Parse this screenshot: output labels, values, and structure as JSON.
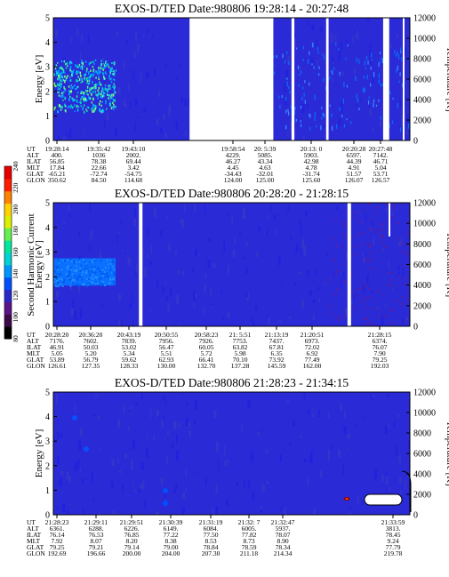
{
  "colorbar": {
    "label": "Second Harmonic Current",
    "ticks": [
      "80",
      "100",
      "120",
      "140",
      "160",
      "180",
      "200",
      "220",
      "240"
    ],
    "colors": [
      "#000000",
      "#3c0a4a",
      "#5a148a",
      "#2828c8",
      "#0050ff",
      "#0096ff",
      "#00d2d2",
      "#00e69a",
      "#64f050",
      "#dcf000",
      "#ffd200",
      "#ff8200",
      "#ff1e00",
      "#e60000"
    ]
  },
  "table_labels": [
    "UT",
    "ALT",
    "ILAT",
    "MLT",
    "GLAT",
    "GLON"
  ],
  "chart_data": [
    {
      "type": "heatmap",
      "title": "EXOS-D/TED   Date:980806   19:28:14 - 20:27:48",
      "ylabel": "Energy [eV]",
      "ylabel_right": "Temperature [K]",
      "ylim": [
        0,
        5
      ],
      "ylim_right": [
        0,
        12000
      ],
      "yticks": [
        "0",
        "1",
        "2",
        "3",
        "4",
        "5"
      ],
      "yticks_right": [
        "0",
        "2000",
        "4000",
        "6000",
        "8000",
        "10000",
        "12000"
      ],
      "gaps_fraction": [
        [
          0.382,
          0.617
        ],
        [
          0.668,
          0.676
        ],
        [
          0.765,
          0.772
        ],
        [
          0.925,
          0.942
        ],
        [
          0.98,
          0.985
        ]
      ],
      "columns": [
        {
          "UT": "19:28:14",
          "ALT": "400.",
          "ILAT": "56.85",
          "MLT": "17.84",
          "GLAT": "-65.21",
          "GLON": "350.62"
        },
        {
          "UT": "19:35:42",
          "ALT": "1036",
          "ILAT": "78.38",
          "MLT": "22.66",
          "GLAT": "-72.74",
          "GLON": "84.50"
        },
        {
          "UT": "19:43:10",
          "ALT": "2002.",
          "ILAT": "69.44",
          "MLT": "3.42",
          "GLAT": "-54.75",
          "GLON": "114.68"
        },
        {
          "UT": "",
          "ALT": "",
          "ILAT": "",
          "MLT": "",
          "GLAT": "",
          "GLON": ""
        },
        {
          "UT": "",
          "ALT": "",
          "ILAT": "",
          "MLT": "",
          "GLAT": "",
          "GLON": ""
        },
        {
          "UT": "19:58:54",
          "ALT": "4229.",
          "ILAT": "46.27",
          "MLT": "4.45",
          "GLAT": "-34.43",
          "GLON": "124.00"
        },
        {
          "UT": "20: 5:39",
          "ALT": "5085.",
          "ILAT": "43.34",
          "MLT": "4.63",
          "GLAT": "-32.01",
          "GLON": "125.00"
        },
        {
          "UT": "20:13: 0",
          "ALT": "5903.",
          "ILAT": "42.98",
          "MLT": "4.78",
          "GLAT": "-31.74",
          "GLON": "125.60"
        },
        {
          "UT": "20:20:28",
          "ALT": "6597.",
          "ILAT": "44.39",
          "MLT": "4.91",
          "GLAT": "51.57",
          "GLON": "126.07"
        },
        {
          "UT": "20:27:48",
          "ALT": "7142.",
          "ILAT": "46.71",
          "MLT": "5.04",
          "GLAT": "53.71",
          "GLON": "126.57"
        }
      ]
    },
    {
      "type": "heatmap",
      "title": "EXOS-D/TED   Date:980806   20:28:20 - 21:28:15",
      "ylabel": "Energy [eV]",
      "ylabel_right": "Temperature [K]",
      "ylim": [
        0,
        5
      ],
      "ylim_right": [
        0,
        12000
      ],
      "yticks": [
        "0",
        "1",
        "2",
        "3",
        "4",
        "5"
      ],
      "yticks_right": [
        "0",
        "2000",
        "4000",
        "6000",
        "8000",
        "10000",
        "12000"
      ],
      "gaps_fraction": [
        [
          0.24,
          0.25
        ],
        [
          0.825,
          0.835
        ]
      ],
      "columns": [
        {
          "UT": "20:28:20",
          "ALT": "7176.",
          "ILAT": "46.91",
          "MLT": "5.05",
          "GLAT": "53.89",
          "GLON": "126.61"
        },
        {
          "UT": "20:36:20",
          "ALT": "7602.",
          "ILAT": "50.03",
          "MLT": "5.20",
          "GLAT": "56.79",
          "GLON": "127.35"
        },
        {
          "UT": "20:43:19",
          "ALT": "7839.",
          "ILAT": "53.02",
          "MLT": "5.34",
          "GLAT": "59.62",
          "GLON": "128.33"
        },
        {
          "UT": "20:50:55",
          "ALT": "7956.",
          "ILAT": "56.47",
          "MLT": "5.51",
          "GLAT": "62.93",
          "GLON": "130.00"
        },
        {
          "UT": "20:58:23",
          "ALT": "7926.",
          "ILAT": "60.05",
          "MLT": "5.72",
          "GLAT": "66.41",
          "GLON": "132.70"
        },
        {
          "UT": "21: 5:51",
          "ALT": "7753.",
          "ILAT": "63.82",
          "MLT": "5.98",
          "GLAT": "70.10",
          "GLON": "137.28"
        },
        {
          "UT": "21:13:19",
          "ALT": "7437.",
          "ILAT": "67.81",
          "MLT": "6.35",
          "GLAT": "73.92",
          "GLON": "145.59"
        },
        {
          "UT": "21:20:51",
          "ALT": "6973.",
          "ILAT": "72.02",
          "MLT": "6.92",
          "GLAT": "77.49",
          "GLON": "162.00"
        },
        {
          "UT": "21:28:15",
          "ALT": "6374.",
          "ILAT": "76.07",
          "MLT": "7.90",
          "GLAT": "79.25",
          "GLON": "192.03"
        }
      ]
    },
    {
      "type": "heatmap",
      "title": "EXOS-D/TED   Date:980806   21:28:23 - 21:34:15",
      "ylabel": "Energy [eV]",
      "ylabel_right": "Temperature [K]",
      "ylim": [
        0,
        5
      ],
      "ylim_right": [
        0,
        12000
      ],
      "yticks": [
        "0",
        "1",
        "2",
        "3",
        "4",
        "5"
      ],
      "yticks_right": [
        "0",
        "2000",
        "4000",
        "6000",
        "8000",
        "10000",
        "12000"
      ],
      "gaps_fraction": [],
      "columns": [
        {
          "UT": "21:28:23",
          "ALT": "6361.",
          "ILAT": "76.14",
          "MLT": "7.92",
          "GLAT": "79.25",
          "GLON": "192.69"
        },
        {
          "UT": "21:29:11",
          "ALT": "6288.",
          "ILAT": "76.53",
          "MLT": "8.07",
          "GLAT": "79.21",
          "GLON": "196.66"
        },
        {
          "UT": "21:29:51",
          "ALT": "6226.",
          "ILAT": "76.85",
          "MLT": "8.20",
          "GLAT": "79.14",
          "GLON": "200.00"
        },
        {
          "UT": "21:30:39",
          "ALT": "6149.",
          "ILAT": "77.22",
          "MLT": "8.38",
          "GLAT": "79.00",
          "GLON": "204.00"
        },
        {
          "UT": "21:31:19",
          "ALT": "6084.",
          "ILAT": "77.50",
          "MLT": "8.53",
          "GLAT": "78.84",
          "GLON": "207.30"
        },
        {
          "UT": "21:32: 7",
          "ALT": "6005.",
          "ILAT": "77.82",
          "MLT": "8.73",
          "GLAT": "78.59",
          "GLON": "211.18"
        },
        {
          "UT": "21:32:47",
          "ALT": "5937.",
          "ILAT": "78.07",
          "MLT": "8.90",
          "GLAT": "78.34",
          "GLON": "214.34"
        },
        {
          "UT": "",
          "ALT": "",
          "ILAT": "",
          "MLT": "",
          "GLAT": "",
          "GLON": ""
        },
        {
          "UT": "21:33:59",
          "ALT": "3813.",
          "ILAT": "78.45",
          "MLT": "9.24",
          "GLAT": "77.79",
          "GLON": "219.78"
        }
      ]
    }
  ]
}
